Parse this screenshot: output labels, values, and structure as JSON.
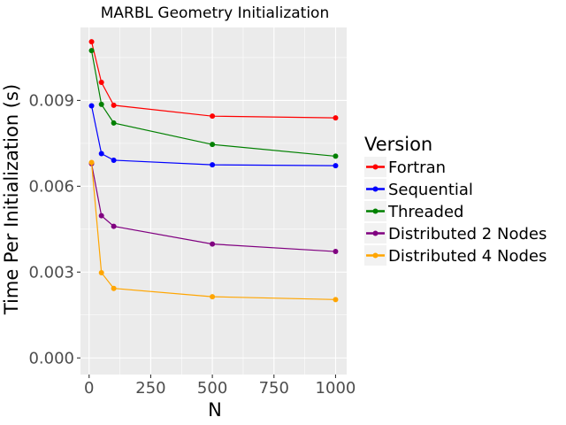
{
  "chart_data": {
    "type": "line",
    "title": "MARBL Geometry Initialization",
    "xlabel": "N",
    "ylabel": "Time Per Initialization (s)",
    "xlim": [
      -35,
      1045
    ],
    "ylim": [
      -0.00058,
      0.01155
    ],
    "x_ticks": [
      0,
      250,
      500,
      750,
      1000
    ],
    "x_tick_labels": [
      "0",
      "250",
      "500",
      "750",
      "1000"
    ],
    "y_ticks": [
      0.0,
      0.003,
      0.006,
      0.009
    ],
    "y_tick_labels": [
      "0.000",
      "0.003",
      "0.006",
      "0.009"
    ],
    "grid": true,
    "legend": {
      "title": "Version",
      "position": "right"
    },
    "x": [
      10,
      50,
      100,
      500,
      1000
    ],
    "series": [
      {
        "name": "Fortran",
        "color": "#ff0000",
        "values": [
          0.01105,
          0.00963,
          0.00883,
          0.00845,
          0.00839
        ]
      },
      {
        "name": "Sequential",
        "color": "#0000ff",
        "values": [
          0.00881,
          0.00714,
          0.00691,
          0.00675,
          0.00672
        ]
      },
      {
        "name": "Threaded",
        "color": "#008000",
        "values": [
          0.01074,
          0.00886,
          0.00821,
          0.00746,
          0.00705
        ]
      },
      {
        "name": "Distributed 2 Nodes",
        "color": "#800080",
        "values": [
          0.00679,
          0.00497,
          0.0046,
          0.00398,
          0.00372
        ]
      },
      {
        "name": "Distributed 4 Nodes",
        "color": "#ffa500",
        "values": [
          0.00683,
          0.00298,
          0.00243,
          0.00214,
          0.00204
        ]
      }
    ]
  }
}
